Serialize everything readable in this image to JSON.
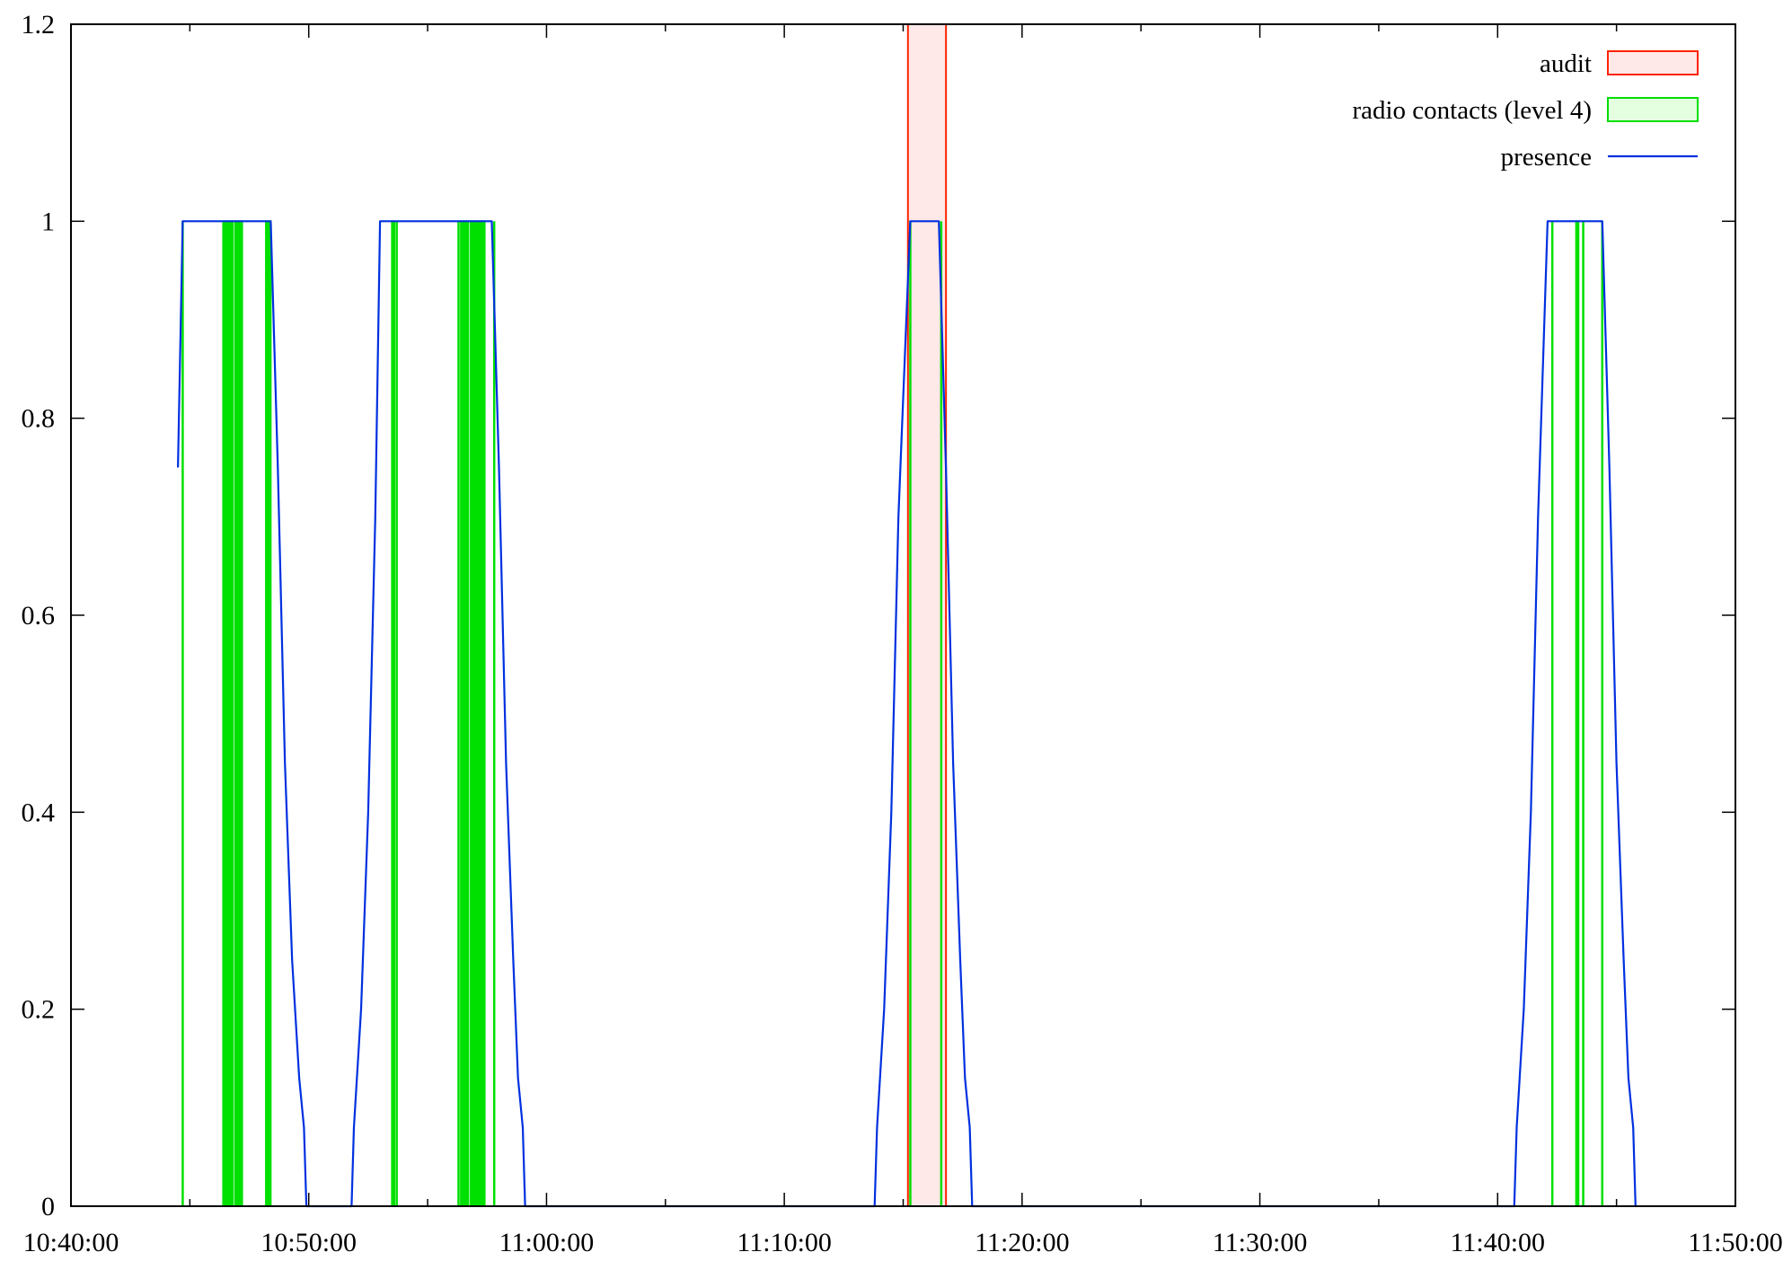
{
  "chart_data": {
    "type": "area",
    "title": "",
    "xlabel": "",
    "ylabel": "",
    "xlim": [
      "10:40:00",
      "11:50:00"
    ],
    "ylim": [
      0,
      1.2
    ],
    "grid": false,
    "legend_position": "top-right",
    "x_ticks": [
      "10:40:00",
      "10:50:00",
      "11:00:00",
      "11:10:00",
      "11:20:00",
      "11:30:00",
      "11:40:00",
      "11:50:00"
    ],
    "y_ticks": [
      "0",
      "0.2",
      "0.4",
      "0.6",
      "0.8",
      "1",
      "1.2"
    ],
    "colors": {
      "audit_stroke": "#ff2200",
      "audit_fill": "#ffe8e8",
      "radio_stroke": "#00e000",
      "radio_fill": "#00e000",
      "presence": "#0030e0",
      "axis": "#000000"
    },
    "series": [
      {
        "name": "audit",
        "kind": "intervals",
        "intervals": [
          [
            "11:15:12",
            "11:16:48"
          ]
        ]
      },
      {
        "name": "radio contacts (level 4)",
        "kind": "intervals",
        "intervals": [
          [
            "10:44:42",
            "10:44:42"
          ],
          [
            "10:46:24",
            "10:46:48"
          ],
          [
            "10:46:54",
            "10:47:12"
          ],
          [
            "10:48:12",
            "10:48:24"
          ],
          [
            "10:53:30",
            "10:53:36"
          ],
          [
            "10:53:42",
            "10:53:42"
          ],
          [
            "10:56:18",
            "10:56:18"
          ],
          [
            "10:56:24",
            "10:56:42"
          ],
          [
            "10:56:48",
            "10:57:24"
          ],
          [
            "10:57:48",
            "10:57:48"
          ],
          [
            "11:15:18",
            "11:15:18"
          ],
          [
            "11:16:36",
            "11:16:36"
          ],
          [
            "11:42:18",
            "11:42:18"
          ],
          [
            "11:43:18",
            "11:43:24"
          ],
          [
            "11:43:36",
            "11:43:36"
          ],
          [
            "11:44:24",
            "11:44:24"
          ]
        ]
      },
      {
        "name": "presence",
        "kind": "line",
        "points": [
          [
            "10:44:30",
            0.75
          ],
          [
            "10:44:42",
            1
          ],
          [
            "10:48:24",
            1
          ],
          [
            "10:48:42",
            0.75
          ],
          [
            "10:49:00",
            0.45
          ],
          [
            "10:49:18",
            0.25
          ],
          [
            "10:49:36",
            0.13
          ],
          [
            "10:49:48",
            0.08
          ],
          [
            "10:49:54",
            0
          ],
          [
            "10:51:48",
            0
          ],
          [
            "10:51:54",
            0.08
          ],
          [
            "10:52:12",
            0.2
          ],
          [
            "10:52:30",
            0.4
          ],
          [
            "10:52:48",
            0.7
          ],
          [
            "10:53:00",
            1
          ],
          [
            "10:57:42",
            1
          ],
          [
            "10:58:00",
            0.75
          ],
          [
            "10:58:18",
            0.45
          ],
          [
            "10:58:36",
            0.25
          ],
          [
            "10:58:48",
            0.13
          ],
          [
            "10:59:00",
            0.08
          ],
          [
            "10:59:06",
            0
          ],
          [
            "11:13:48",
            0
          ],
          [
            "11:13:54",
            0.08
          ],
          [
            "11:14:12",
            0.2
          ],
          [
            "11:14:30",
            0.4
          ],
          [
            "11:14:48",
            0.7
          ],
          [
            "11:15:18",
            1
          ],
          [
            "11:16:30",
            1
          ],
          [
            "11:16:48",
            0.75
          ],
          [
            "11:17:06",
            0.45
          ],
          [
            "11:17:24",
            0.25
          ],
          [
            "11:17:36",
            0.13
          ],
          [
            "11:17:48",
            0.08
          ],
          [
            "11:17:54",
            0
          ],
          [
            "11:40:42",
            0
          ],
          [
            "11:40:48",
            0.08
          ],
          [
            "11:41:06",
            0.2
          ],
          [
            "11:41:24",
            0.4
          ],
          [
            "11:41:42",
            0.7
          ],
          [
            "11:42:06",
            1
          ],
          [
            "11:44:24",
            1
          ],
          [
            "11:44:42",
            0.75
          ],
          [
            "11:45:00",
            0.45
          ],
          [
            "11:45:18",
            0.25
          ],
          [
            "11:45:30",
            0.13
          ],
          [
            "11:45:42",
            0.08
          ],
          [
            "11:45:48",
            0
          ]
        ]
      }
    ]
  }
}
